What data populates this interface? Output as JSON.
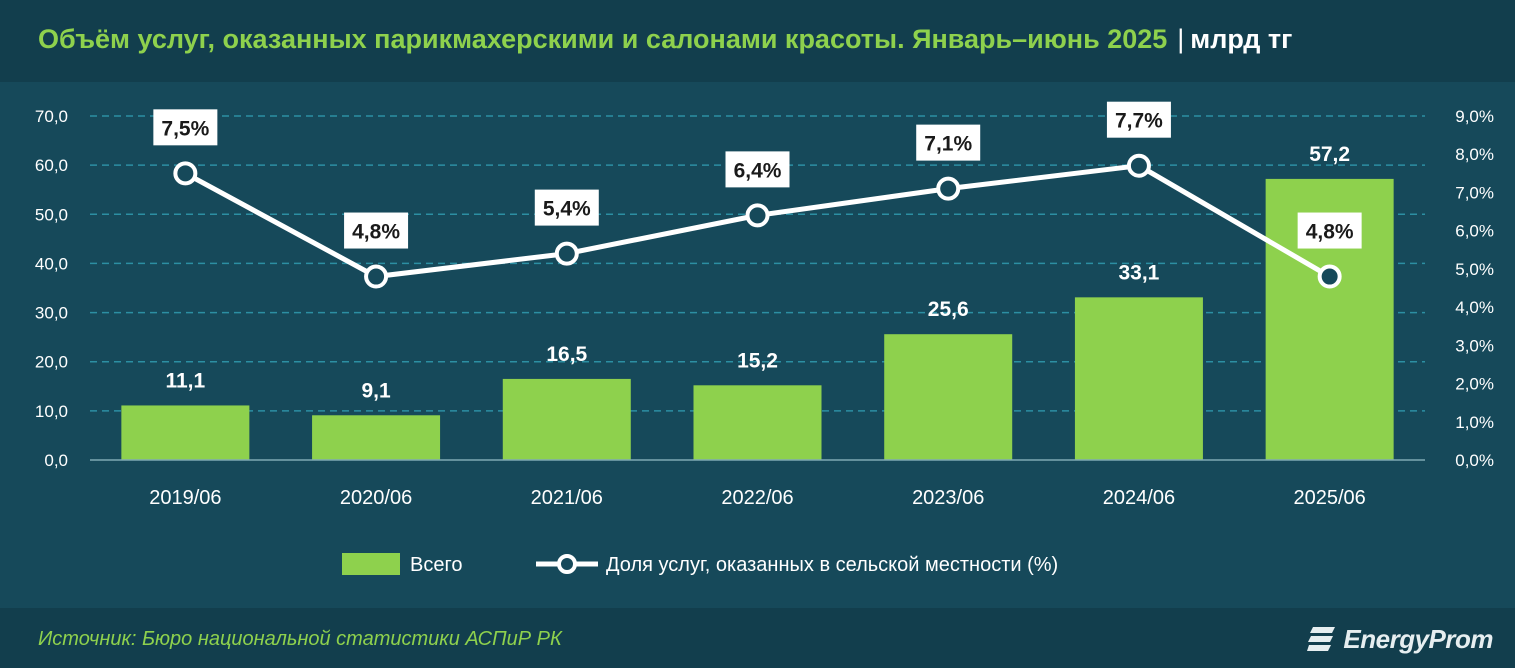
{
  "title": "Объём услуг, оказанных парикмахерскими и салонами красоты. Январь–июнь 2025",
  "title_separator": "|",
  "unit": "млрд тг",
  "source": "Источник: Бюро национальной статистики АСПиР РК",
  "logo": "EnergyProm",
  "colors": {
    "background": "#16495a",
    "header": "#123e4d",
    "bar": "#8ed14d",
    "line": "#ffffff",
    "title": "#8ed14d"
  },
  "chart_data": {
    "type": "bar",
    "categories": [
      "2019/06",
      "2020/06",
      "2021/06",
      "2022/06",
      "2023/06",
      "2024/06",
      "2025/06"
    ],
    "series": [
      {
        "name": "Всего",
        "type": "bar",
        "axis": "left",
        "values": [
          11.1,
          9.1,
          16.5,
          15.2,
          25.6,
          33.1,
          57.2
        ],
        "labels": [
          "11,1",
          "9,1",
          "16,5",
          "15,2",
          "25,6",
          "33,1",
          "57,2"
        ]
      },
      {
        "name": "Доля услуг, оказанных в сельской местности (%)",
        "type": "line",
        "axis": "right",
        "values": [
          7.5,
          4.8,
          5.4,
          6.4,
          7.1,
          7.7,
          4.8
        ],
        "labels": [
          "7,5%",
          "4,8%",
          "5,4%",
          "6,4%",
          "7,1%",
          "7,7%",
          "4,8%"
        ]
      }
    ],
    "y_left": {
      "ylim": [
        0,
        70
      ],
      "ticks": [
        "0,0",
        "10,0",
        "20,0",
        "30,0",
        "40,0",
        "50,0",
        "60,0",
        "70,0"
      ]
    },
    "y_right": {
      "ylim": [
        0,
        9
      ],
      "ticks": [
        "0,0%",
        "1,0%",
        "2,0%",
        "3,0%",
        "4,0%",
        "5,0%",
        "6,0%",
        "7,0%",
        "8,0%",
        "9,0%"
      ]
    },
    "grid": true,
    "legend": "bottom"
  }
}
